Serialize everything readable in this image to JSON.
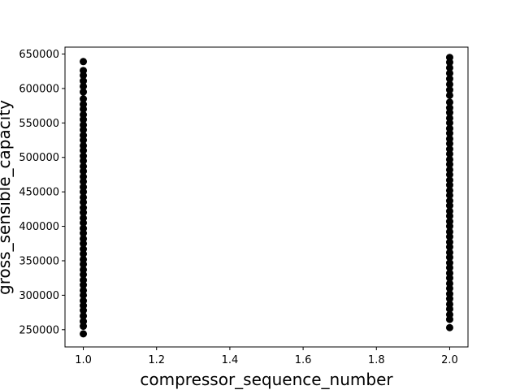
{
  "chart_data": {
    "type": "scatter",
    "title": "",
    "xlabel": "compressor_sequence_number",
    "ylabel": "gross_sensible_capacity",
    "xlim": [
      0.95,
      2.05
    ],
    "ylim": [
      225000,
      660000
    ],
    "x_ticks": [
      1.0,
      1.2,
      1.4,
      1.6,
      1.8,
      2.0
    ],
    "x_tick_labels": [
      "1.0",
      "1.2",
      "1.4",
      "1.6",
      "1.8",
      "2.0"
    ],
    "y_ticks": [
      250000,
      300000,
      350000,
      400000,
      450000,
      500000,
      550000,
      600000,
      650000
    ],
    "y_tick_labels": [
      "250000",
      "300000",
      "350000",
      "400000",
      "450000",
      "500000",
      "550000",
      "600000",
      "650000"
    ],
    "grid": false,
    "marker_color": "#000000",
    "series": [
      {
        "points": [
          [
            1,
            244000
          ],
          [
            1,
            255000
          ],
          [
            1,
            262000
          ],
          [
            1,
            270000
          ],
          [
            1,
            278000
          ],
          [
            1,
            285000
          ],
          [
            1,
            292000
          ],
          [
            1,
            300000
          ],
          [
            1,
            307000
          ],
          [
            1,
            315000
          ],
          [
            1,
            322000
          ],
          [
            1,
            330000
          ],
          [
            1,
            337000
          ],
          [
            1,
            345000
          ],
          [
            1,
            352000
          ],
          [
            1,
            360000
          ],
          [
            1,
            367000
          ],
          [
            1,
            375000
          ],
          [
            1,
            382000
          ],
          [
            1,
            390000
          ],
          [
            1,
            397000
          ],
          [
            1,
            405000
          ],
          [
            1,
            412000
          ],
          [
            1,
            420000
          ],
          [
            1,
            427000
          ],
          [
            1,
            435000
          ],
          [
            1,
            442000
          ],
          [
            1,
            450000
          ],
          [
            1,
            457000
          ],
          [
            1,
            465000
          ],
          [
            1,
            472000
          ],
          [
            1,
            480000
          ],
          [
            1,
            487000
          ],
          [
            1,
            495000
          ],
          [
            1,
            502000
          ],
          [
            1,
            510000
          ],
          [
            1,
            517000
          ],
          [
            1,
            525000
          ],
          [
            1,
            532000
          ],
          [
            1,
            540000
          ],
          [
            1,
            547000
          ],
          [
            1,
            555000
          ],
          [
            1,
            562000
          ],
          [
            1,
            570000
          ],
          [
            1,
            577000
          ],
          [
            1,
            585000
          ],
          [
            1,
            595000
          ],
          [
            1,
            603000
          ],
          [
            1,
            611000
          ],
          [
            1,
            619000
          ],
          [
            1,
            626000
          ],
          [
            1,
            639000
          ],
          [
            2,
            253000
          ],
          [
            2,
            265000
          ],
          [
            2,
            272000
          ],
          [
            2,
            280000
          ],
          [
            2,
            287000
          ],
          [
            2,
            295000
          ],
          [
            2,
            302000
          ],
          [
            2,
            310000
          ],
          [
            2,
            317000
          ],
          [
            2,
            325000
          ],
          [
            2,
            332000
          ],
          [
            2,
            340000
          ],
          [
            2,
            347000
          ],
          [
            2,
            355000
          ],
          [
            2,
            362000
          ],
          [
            2,
            370000
          ],
          [
            2,
            377000
          ],
          [
            2,
            385000
          ],
          [
            2,
            392000
          ],
          [
            2,
            400000
          ],
          [
            2,
            407000
          ],
          [
            2,
            415000
          ],
          [
            2,
            422000
          ],
          [
            2,
            430000
          ],
          [
            2,
            437000
          ],
          [
            2,
            445000
          ],
          [
            2,
            452000
          ],
          [
            2,
            460000
          ],
          [
            2,
            467000
          ],
          [
            2,
            475000
          ],
          [
            2,
            482000
          ],
          [
            2,
            490000
          ],
          [
            2,
            497000
          ],
          [
            2,
            505000
          ],
          [
            2,
            512000
          ],
          [
            2,
            520000
          ],
          [
            2,
            527000
          ],
          [
            2,
            535000
          ],
          [
            2,
            542000
          ],
          [
            2,
            550000
          ],
          [
            2,
            557000
          ],
          [
            2,
            565000
          ],
          [
            2,
            572000
          ],
          [
            2,
            580000
          ],
          [
            2,
            590000
          ],
          [
            2,
            598000
          ],
          [
            2,
            606000
          ],
          [
            2,
            614000
          ],
          [
            2,
            622000
          ],
          [
            2,
            630000
          ],
          [
            2,
            638000
          ],
          [
            2,
            645000
          ]
        ]
      }
    ]
  }
}
